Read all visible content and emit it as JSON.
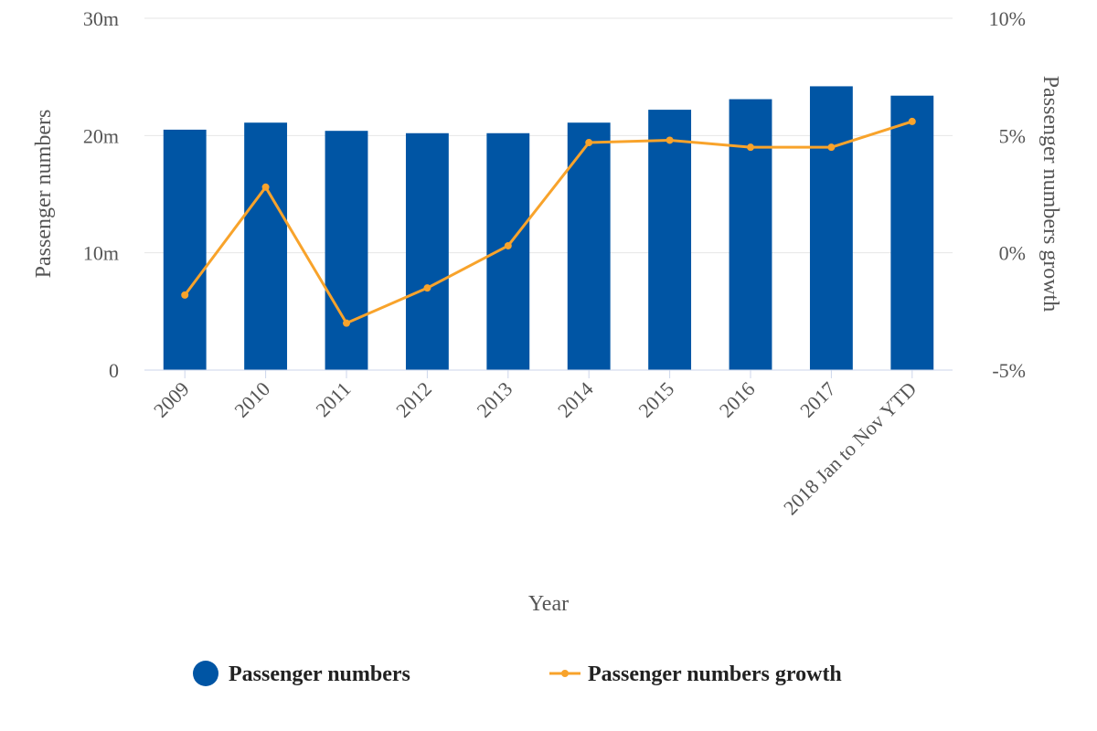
{
  "chart_data": {
    "type": "bar",
    "categories": [
      "2009",
      "2010",
      "2011",
      "2012",
      "2013",
      "2014",
      "2015",
      "2016",
      "2017",
      "2018 Jan to Nov YTD"
    ],
    "series": [
      {
        "name": "Passenger numbers",
        "type": "bar",
        "axis": "left",
        "color": "#0055a4",
        "values": [
          20.5,
          21.1,
          20.4,
          20.2,
          20.2,
          21.1,
          22.2,
          23.1,
          24.2,
          23.4
        ]
      },
      {
        "name": "Passenger numbers growth",
        "type": "line",
        "axis": "right",
        "color": "#f8a32b",
        "values": [
          -1.8,
          2.8,
          -3.0,
          -1.5,
          0.3,
          4.7,
          4.8,
          4.5,
          4.5,
          5.6
        ]
      }
    ],
    "xlabel": "Year",
    "ylabel": "Passenger numbers",
    "y2label": "Passenger numbers growth",
    "ylim": [
      0,
      30
    ],
    "y2lim": [
      -5,
      10
    ],
    "yticks": [
      0,
      10,
      20,
      30
    ],
    "yticklabels": [
      "0",
      "10m",
      "20m",
      "30m"
    ],
    "y2ticks": [
      -5,
      0,
      5,
      10
    ],
    "y2ticklabels": [
      "-5%",
      "0%",
      "5%",
      "10%"
    ],
    "grid": true,
    "legend": "bottom"
  }
}
